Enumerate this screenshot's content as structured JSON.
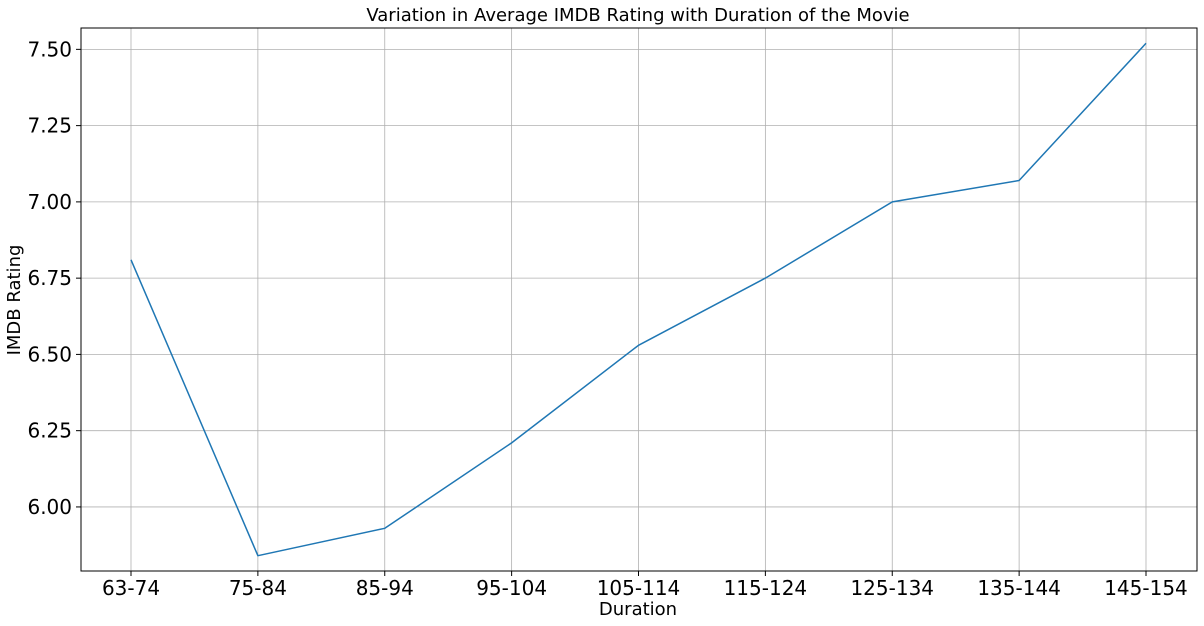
{
  "chart_data": {
    "type": "line",
    "title": "Variation in Average IMDB Rating with Duration of the Movie",
    "xlabel": "Duration",
    "ylabel": "IMDB Rating",
    "categories": [
      "63-74",
      "75-84",
      "85-94",
      "95-104",
      "105-114",
      "115-124",
      "125-134",
      "135-144",
      "145-154"
    ],
    "series": [
      {
        "values": [
          6.81,
          5.84,
          5.93,
          6.21,
          6.53,
          6.75,
          7.0,
          7.07,
          7.52
        ]
      }
    ],
    "yticks": [
      6.0,
      6.25,
      6.5,
      6.75,
      7.0,
      7.25,
      7.5
    ],
    "ytick_labels": [
      "6.00",
      "6.25",
      "6.50",
      "6.75",
      "7.00",
      "7.25",
      "7.50"
    ],
    "ylim": [
      5.79,
      7.57
    ],
    "grid": true,
    "line_color": "#1f77b4"
  }
}
